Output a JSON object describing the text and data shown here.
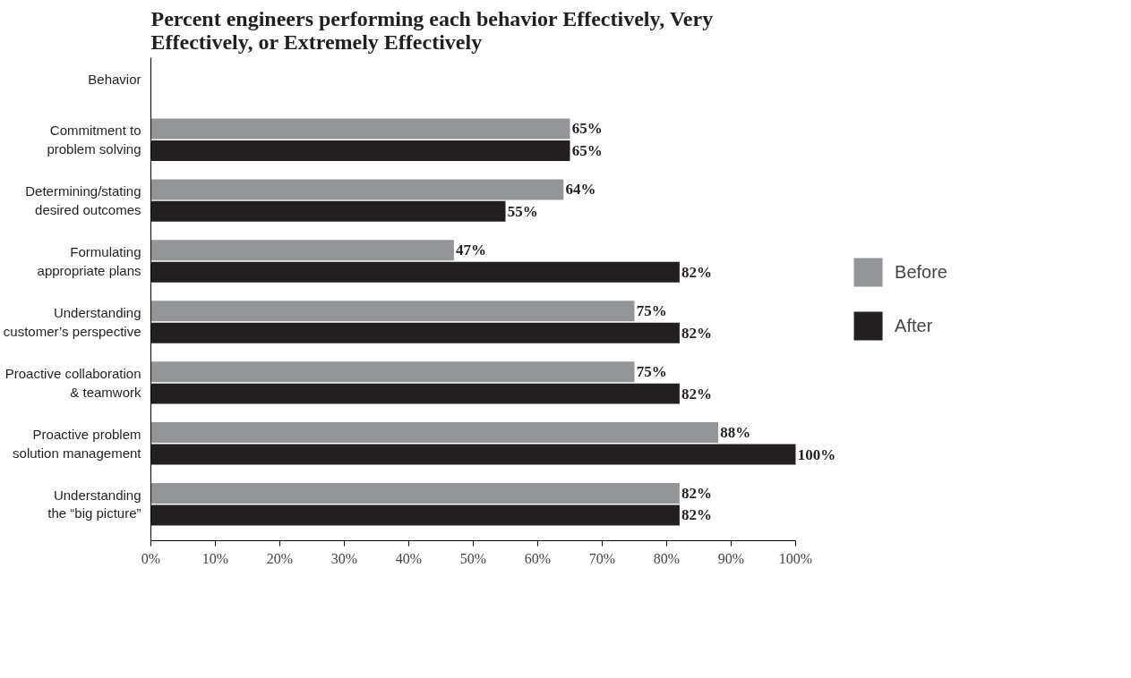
{
  "chart_data": {
    "type": "bar",
    "orientation": "horizontal",
    "title": "Percent engineers performing each behavior Effectively, Very Effectively, or Extremely Effectively",
    "ylabel": "Behavior",
    "categories": [
      "Commitment to problem solving",
      "Determining/stating desired outcomes",
      "Formulating appropriate plans",
      "Understanding customer’s perspective",
      "Proactive collaboration & teamwork",
      "Proactive problem solution management",
      "Understanding the “big picture”"
    ],
    "series": [
      {
        "name": "Before",
        "color": "#939598",
        "values": [
          65,
          64,
          47,
          75,
          75,
          88,
          82
        ],
        "value_labels": [
          "65%",
          "64%",
          "47%",
          "75%",
          "75%",
          "88%",
          "82%"
        ]
      },
      {
        "name": "After",
        "color": "#231f20",
        "values": [
          65,
          55,
          82,
          82,
          82,
          100,
          82
        ],
        "value_labels": [
          "65%",
          "55%",
          "82%",
          "82%",
          "82%",
          "100%",
          "82%"
        ]
      }
    ],
    "xlim": [
      0,
      100
    ],
    "xticks": [
      {
        "value": 0,
        "label": "0%"
      },
      {
        "value": 10,
        "label": "10%"
      },
      {
        "value": 20,
        "label": "20%"
      },
      {
        "value": 30,
        "label": "30%"
      },
      {
        "value": 40,
        "label": "40%"
      },
      {
        "value": 50,
        "label": "50%"
      },
      {
        "value": 60,
        "label": "60%"
      },
      {
        "value": 70,
        "label": "70%"
      },
      {
        "value": 80,
        "label": "80%"
      },
      {
        "value": 90,
        "label": "90%"
      },
      {
        "value": 100,
        "label": "100%"
      }
    ],
    "legend": "right",
    "grid": false
  }
}
